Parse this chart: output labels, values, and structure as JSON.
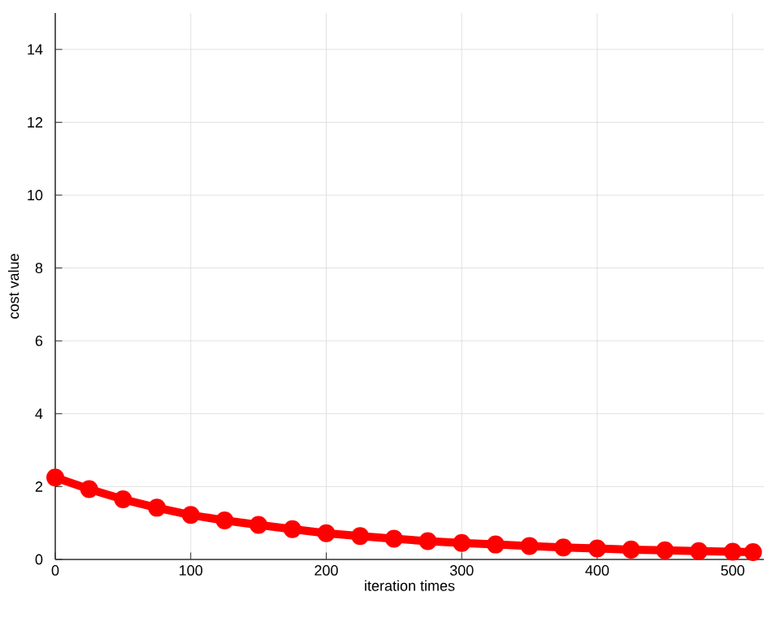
{
  "chart_data": {
    "type": "line",
    "xlabel": "iteration times",
    "ylabel": "cost value",
    "x": [
      0,
      25,
      50,
      75,
      100,
      125,
      150,
      175,
      200,
      225,
      250,
      275,
      300,
      325,
      350,
      375,
      400,
      425,
      450,
      475,
      500,
      515
    ],
    "series": [
      {
        "color": "#ff0000",
        "values": [
          2.25,
          1.93,
          1.65,
          1.42,
          1.22,
          1.07,
          0.95,
          0.83,
          0.72,
          0.64,
          0.57,
          0.5,
          0.45,
          0.41,
          0.37,
          0.33,
          0.3,
          0.27,
          0.25,
          0.23,
          0.21,
          0.2
        ]
      }
    ],
    "xlim": [
      0,
      523
    ],
    "ylim": [
      0,
      15
    ],
    "xticks": [
      0,
      100,
      200,
      300,
      400,
      500
    ],
    "yticks": [
      0,
      2,
      4,
      6,
      8,
      10,
      12,
      14
    ],
    "grid": true,
    "marker": "circle",
    "line_style": "solid"
  }
}
